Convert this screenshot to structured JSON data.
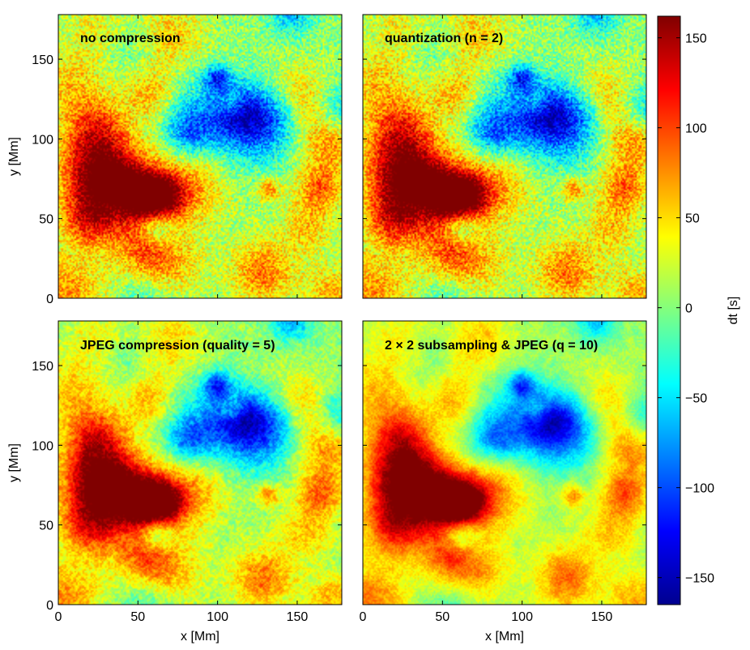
{
  "chart_data": [
    {
      "type": "heatmap",
      "title": "no compression",
      "xlabel": "",
      "ylabel": "y [Mm]",
      "xlim": [
        0,
        178
      ],
      "ylim": [
        0,
        178
      ],
      "xticks": [
        "",
        "",
        "",
        ""
      ],
      "yticks": [
        "0",
        "50",
        "100",
        "150"
      ],
      "xtick_values": [
        0,
        50,
        100,
        150
      ],
      "ytick_values": [
        0,
        50,
        100,
        150
      ]
    },
    {
      "type": "heatmap",
      "title": "quantization (n = 2)",
      "xlabel": "",
      "ylabel": "",
      "xlim": [
        0,
        178
      ],
      "ylim": [
        0,
        178
      ],
      "xticks": [
        "",
        "",
        "",
        ""
      ],
      "yticks": [
        "",
        "",
        "",
        ""
      ],
      "xtick_values": [
        0,
        50,
        100,
        150
      ],
      "ytick_values": [
        0,
        50,
        100,
        150
      ]
    },
    {
      "type": "heatmap",
      "title": "JPEG compression (quality = 5)",
      "xlabel": "x [Mm]",
      "ylabel": "y [Mm]",
      "xlim": [
        0,
        178
      ],
      "ylim": [
        0,
        178
      ],
      "xticks": [
        "0",
        "50",
        "100",
        "150"
      ],
      "yticks": [
        "0",
        "50",
        "100",
        "150"
      ],
      "xtick_values": [
        0,
        50,
        100,
        150
      ],
      "ytick_values": [
        0,
        50,
        100,
        150
      ]
    },
    {
      "type": "heatmap",
      "title": "2 × 2 subsampling & JPEG (q = 10)",
      "xlabel": "x [Mm]",
      "ylabel": "",
      "xlim": [
        0,
        178
      ],
      "ylim": [
        0,
        178
      ],
      "xticks": [
        "0",
        "50",
        "100",
        "150"
      ],
      "yticks": [
        "",
        "",
        "",
        ""
      ],
      "xtick_values": [
        0,
        50,
        100,
        150
      ],
      "ytick_values": [
        0,
        50,
        100,
        150
      ]
    }
  ],
  "colorbar": {
    "label": "dt [s]",
    "range": [
      -165,
      162
    ],
    "ticks": [
      "150",
      "100",
      "50",
      "0",
      "−50",
      "−100",
      "−150"
    ],
    "tick_values": [
      150,
      100,
      50,
      0,
      -50,
      -100,
      -150
    ],
    "colormap": [
      "#00008f",
      "#0000ff",
      "#00ffff",
      "#80ff80",
      "#ffff00",
      "#ff0000",
      "#800000"
    ]
  }
}
